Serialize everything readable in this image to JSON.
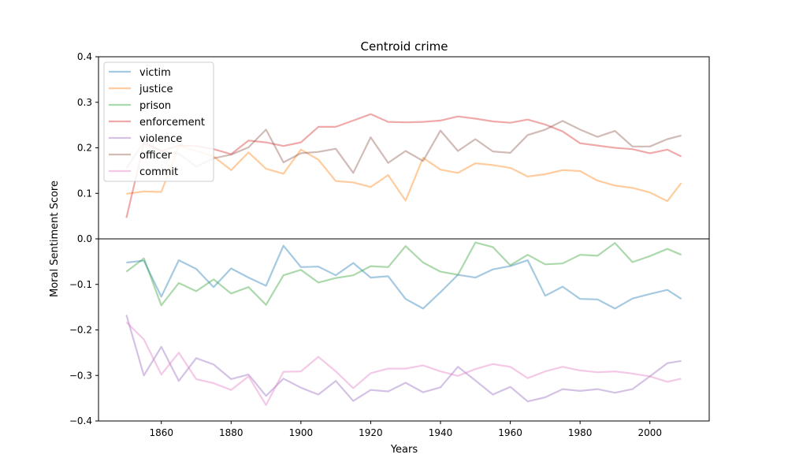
{
  "chart_data": {
    "type": "line",
    "title": "Centroid crime",
    "xlabel": "Years",
    "ylabel": "Moral Sentiment Score",
    "xlim": [
      1842,
      2017
    ],
    "ylim": [
      -0.4,
      0.4
    ],
    "x_ticks": [
      1860,
      1880,
      1900,
      1920,
      1940,
      1960,
      1980,
      2000
    ],
    "y_ticks": [
      -0.4,
      -0.3,
      -0.2,
      -0.1,
      0.0,
      0.1,
      0.2,
      0.3,
      0.4
    ],
    "y_tick_labels": [
      "−0.4",
      "−0.3",
      "−0.2",
      "−0.1",
      "0.0",
      "0.1",
      "0.2",
      "0.3",
      "0.4"
    ],
    "zero_line": true,
    "grid": false,
    "legend_position": "top-left",
    "x": [
      1850,
      1855,
      1860,
      1865,
      1870,
      1875,
      1880,
      1885,
      1890,
      1895,
      1900,
      1905,
      1910,
      1915,
      1920,
      1925,
      1930,
      1935,
      1940,
      1945,
      1950,
      1955,
      1960,
      1965,
      1970,
      1975,
      1980,
      1985,
      1990,
      1995,
      2000,
      2005,
      2009
    ],
    "series": [
      {
        "name": "victim",
        "color": "#1f77b4",
        "values": [
          -0.052,
          -0.048,
          -0.127,
          -0.047,
          -0.066,
          -0.106,
          -0.065,
          -0.085,
          -0.103,
          -0.015,
          -0.062,
          -0.061,
          -0.08,
          -0.053,
          -0.085,
          -0.082,
          -0.132,
          -0.153,
          -0.117,
          -0.079,
          -0.085,
          -0.067,
          -0.06,
          -0.047,
          -0.125,
          -0.105,
          -0.132,
          -0.133,
          -0.153,
          -0.131,
          -0.121,
          -0.112,
          -0.132
        ]
      },
      {
        "name": "justice",
        "color": "#ff7f0e",
        "values": [
          0.099,
          0.104,
          0.103,
          0.205,
          0.193,
          0.181,
          0.151,
          0.19,
          0.154,
          0.143,
          0.196,
          0.174,
          0.127,
          0.124,
          0.114,
          0.14,
          0.084,
          0.178,
          0.152,
          0.145,
          0.166,
          0.162,
          0.156,
          0.137,
          0.142,
          0.151,
          0.149,
          0.128,
          0.117,
          0.112,
          0.102,
          0.083,
          0.123
        ]
      },
      {
        "name": "prison",
        "color": "#2ca02c",
        "values": [
          -0.072,
          -0.043,
          -0.146,
          -0.097,
          -0.115,
          -0.089,
          -0.12,
          -0.106,
          -0.145,
          -0.08,
          -0.068,
          -0.096,
          -0.086,
          -0.08,
          -0.06,
          -0.062,
          -0.016,
          -0.052,
          -0.072,
          -0.079,
          -0.008,
          -0.018,
          -0.058,
          -0.035,
          -0.056,
          -0.054,
          -0.035,
          -0.037,
          -0.009,
          -0.051,
          -0.038,
          -0.022,
          -0.035
        ]
      },
      {
        "name": "enforcement",
        "color": "#d62728",
        "values": [
          0.046,
          0.209,
          0.193,
          0.205,
          0.204,
          0.197,
          0.186,
          0.216,
          0.212,
          0.204,
          0.212,
          0.246,
          0.246,
          0.26,
          0.274,
          0.257,
          0.256,
          0.257,
          0.26,
          0.269,
          0.264,
          0.258,
          0.255,
          0.262,
          0.251,
          0.236,
          0.21,
          0.205,
          0.2,
          0.197,
          0.188,
          0.196,
          0.181
        ]
      },
      {
        "name": "violence",
        "color": "#9467bd",
        "values": [
          -0.167,
          -0.3,
          -0.237,
          -0.312,
          -0.262,
          -0.276,
          -0.308,
          -0.298,
          -0.345,
          -0.307,
          -0.327,
          -0.342,
          -0.312,
          -0.356,
          -0.332,
          -0.335,
          -0.316,
          -0.337,
          -0.326,
          -0.281,
          -0.311,
          -0.342,
          -0.325,
          -0.357,
          -0.348,
          -0.33,
          -0.334,
          -0.33,
          -0.338,
          -0.33,
          -0.302,
          -0.273,
          -0.268
        ]
      },
      {
        "name": "officer",
        "color": "#8c564b",
        "values": [
          0.155,
          0.213,
          0.193,
          0.187,
          0.159,
          0.177,
          0.185,
          0.201,
          0.24,
          0.168,
          0.188,
          0.191,
          0.198,
          0.145,
          0.223,
          0.167,
          0.193,
          0.171,
          0.238,
          0.193,
          0.219,
          0.192,
          0.189,
          0.228,
          0.24,
          0.259,
          0.24,
          0.224,
          0.237,
          0.203,
          0.203,
          0.219,
          0.227
        ]
      },
      {
        "name": "commit",
        "color": "#e377c2",
        "values": [
          -0.183,
          -0.221,
          -0.298,
          -0.25,
          -0.308,
          -0.317,
          -0.332,
          -0.302,
          -0.365,
          -0.292,
          -0.291,
          -0.259,
          -0.291,
          -0.328,
          -0.295,
          -0.285,
          -0.285,
          -0.278,
          -0.291,
          -0.301,
          -0.286,
          -0.275,
          -0.281,
          -0.306,
          -0.291,
          -0.281,
          -0.289,
          -0.293,
          -0.291,
          -0.296,
          -0.302,
          -0.314,
          -0.307
        ]
      }
    ]
  }
}
